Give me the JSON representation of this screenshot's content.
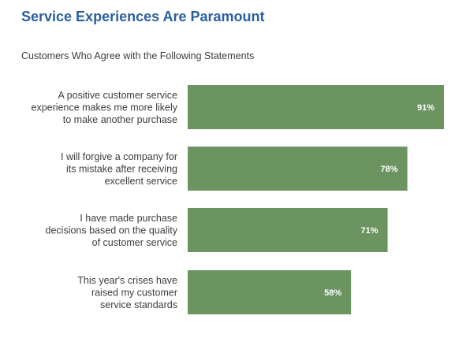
{
  "chart_data": {
    "type": "bar",
    "orientation": "horizontal",
    "title": "Service Experiences Are Paramount",
    "subtitle": "Customers Who Agree with the Following Statements",
    "categories": [
      [
        "A positive customer service",
        "experience makes me more likely",
        "to make another purchase"
      ],
      [
        "I will forgive a company for",
        "its mistake after receiving",
        "excellent service"
      ],
      [
        "I have made purchase",
        "decisions based on the quality",
        "of customer service"
      ],
      [
        "This year's crises have",
        "raised my customer",
        "service standards"
      ]
    ],
    "values": [
      91,
      78,
      71,
      58
    ],
    "value_labels": [
      "91%",
      "78%",
      "71%",
      "58%"
    ],
    "xlim": [
      0,
      91
    ],
    "grid": false,
    "bar_color": "#6b9460",
    "title_color": "#2a5fa0"
  }
}
